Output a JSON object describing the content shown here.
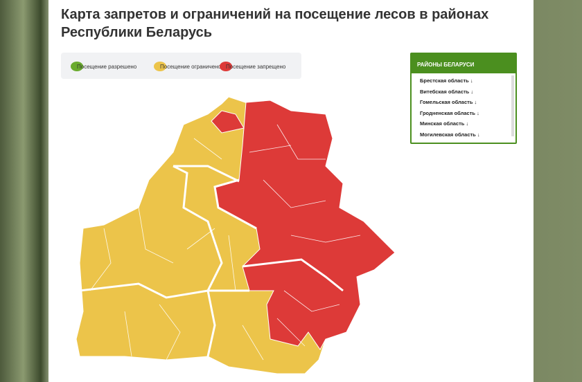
{
  "header": {
    "title_line1": "Карта запретов и ограничений на посещение лесов в районах",
    "title_line2": "Республики Беларусь"
  },
  "legend": {
    "items": [
      {
        "label": "Посещение разрешено",
        "color": "#6aab2e"
      },
      {
        "label": "Посещение ограничено",
        "color": "#ecc44a"
      },
      {
        "label": "Посещение запрещено",
        "color": "#dd3a38"
      }
    ]
  },
  "sidebar": {
    "title": "РАЙОНЫ БЕЛАРУСИ",
    "items": [
      "Брестская область ↓",
      "Витебская область ↓",
      "Гомельская область ↓",
      "Гродненская область ↓",
      "Минская область ↓",
      "Могилевская область ↓"
    ]
  }
}
